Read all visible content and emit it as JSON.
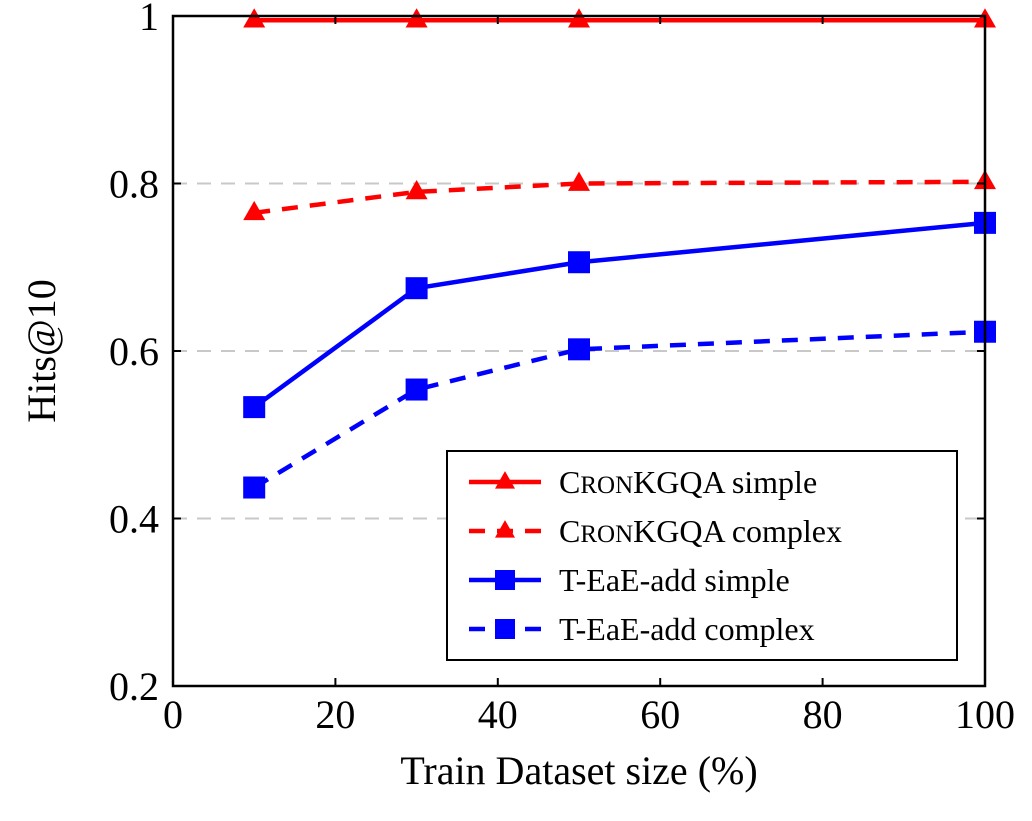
{
  "chart_data": {
    "type": "line",
    "title": "",
    "xlabel": "Train Dataset size (%)",
    "ylabel": "Hits@10",
    "xlim": [
      0,
      100
    ],
    "ylim": [
      0.2,
      1.0
    ],
    "xticks": [
      "0",
      "20",
      "40",
      "60",
      "80",
      "100"
    ],
    "yticks": [
      "0.2",
      "0.4",
      "0.6",
      "0.8",
      "1"
    ],
    "grid": "horizontal dashed",
    "legend_position": "bottom-right",
    "x": [
      10,
      30,
      50,
      100
    ],
    "series": [
      {
        "name": "CronKGQA simple",
        "legend_parts": [
          "C",
          "RON",
          "KGQA simple"
        ],
        "values": [
          0.995,
          0.995,
          0.995,
          0.995
        ],
        "color": "#ff0000",
        "linestyle": "solid",
        "marker": "triangle"
      },
      {
        "name": "CronKGQA complex",
        "legend_parts": [
          "C",
          "RON",
          "KGQA complex"
        ],
        "values": [
          0.765,
          0.79,
          0.8,
          0.802
        ],
        "color": "#ff0000",
        "linestyle": "dashed",
        "marker": "triangle"
      },
      {
        "name": "T-EaE-add simple",
        "legend_parts": [
          "T-EaE-add simple",
          "",
          ""
        ],
        "values": [
          0.533,
          0.675,
          0.706,
          0.753
        ],
        "color": "#0000ff",
        "linestyle": "solid",
        "marker": "square"
      },
      {
        "name": "T-EaE-add complex",
        "legend_parts": [
          "T-EaE-add complex",
          "",
          ""
        ],
        "values": [
          0.437,
          0.554,
          0.602,
          0.623
        ],
        "color": "#0000ff",
        "linestyle": "dashed",
        "marker": "square"
      }
    ]
  }
}
